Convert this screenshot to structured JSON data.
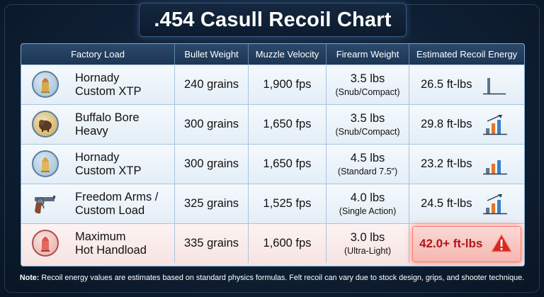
{
  "title": ".454 Casull Recoil Chart",
  "chart_data": {
    "type": "table",
    "columns": [
      "Factory Load",
      "Bullet Weight",
      "Muzzle Velocity",
      "Firearm Weight",
      "Estimated Recoil Energy"
    ],
    "rows": [
      {
        "load": [
          "Hornady",
          "Custom XTP"
        ],
        "bullet": "240 grains",
        "velocity": "1,900 fps",
        "firearm": "3.5 lbs",
        "firearm_note": "(Snub/Compact)",
        "energy": "26.5 ft-lbs",
        "energy_value": 26.5,
        "icon": "bullet-icon"
      },
      {
        "load": [
          "Buffalo Bore",
          "Heavy"
        ],
        "bullet": "300 grains",
        "velocity": "1,650 fps",
        "firearm": "3.5 lbs",
        "firearm_note": "(Snub/Compact)",
        "energy": "29.8 ft-lbs",
        "energy_value": 29.8,
        "icon": "buffalo-icon"
      },
      {
        "load": [
          "Hornady",
          "Custom XTP"
        ],
        "bullet": "300 grains",
        "velocity": "1,650 fps",
        "firearm": "4.5 lbs",
        "firearm_note": "(Standard 7.5\")",
        "energy": "23.2 ft-lbs",
        "energy_value": 23.2,
        "icon": "bullet-icon"
      },
      {
        "load": [
          "Freedom Arms /",
          "Custom Load"
        ],
        "bullet": "325 grains",
        "velocity": "1,525 fps",
        "firearm": "4.0 lbs",
        "firearm_note": "(Single Action)",
        "energy": "24.5 ft-lbs",
        "energy_value": 24.5,
        "icon": "revolver-icon"
      },
      {
        "load": [
          "Maximum",
          "Hot Handload"
        ],
        "bullet": "335 grains",
        "velocity": "1,600 fps",
        "firearm": "3.0 lbs",
        "firearm_note": "(Ultra-Light)",
        "energy": "42.0+ ft-lbs",
        "energy_value": 42.0,
        "icon": "bullet-red-icon",
        "highlight": true
      }
    ]
  },
  "note": {
    "label": "Note:",
    "text": "Recoil energy values are estimates based on standard physics formulas. Felt recoil can vary due to stock design, grips, and shooter technique."
  },
  "colors": {
    "header_bg": "#1c3553",
    "highlight_red": "#b0161c",
    "bar_orange": "#e8742a",
    "bar_blue": "#3a7fc4"
  }
}
